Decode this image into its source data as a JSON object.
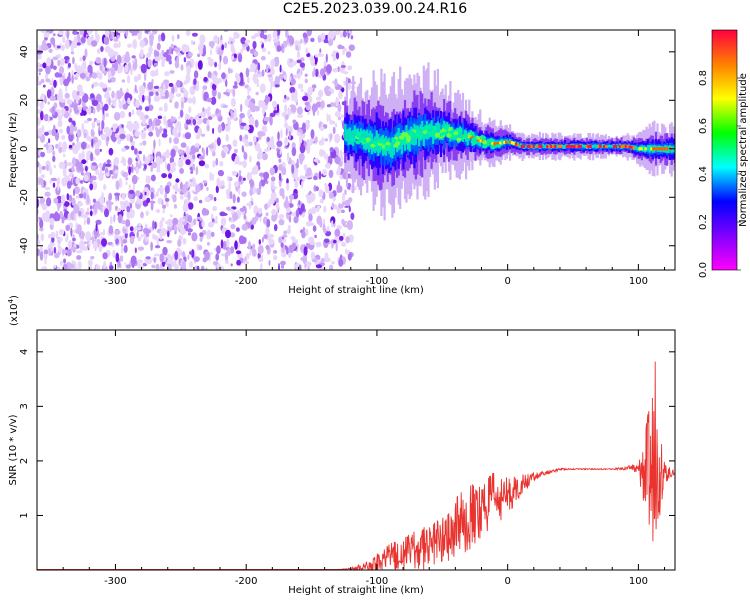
{
  "title": "C2E5.2023.039.00.24.R16",
  "colors": {
    "frame": "#000000",
    "snr_line": "#e8332f",
    "spectrum_noise": "#7a1fe8",
    "colorbar_stops": [
      "#ff00ff",
      "#8000ff",
      "#0000ff",
      "#00ffff",
      "#00ff00",
      "#ffff00",
      "#ff8000",
      "#ff0040"
    ]
  },
  "chart_data": [
    {
      "type": "heatmap",
      "xlabel": "Height of straight line (km)",
      "ylabel": "Frequency (Hz)",
      "xlim": [
        -360,
        128
      ],
      "ylim": [
        -50,
        49
      ],
      "xticks": [
        -300,
        -200,
        -100,
        0,
        100
      ],
      "yticks": [
        -40,
        -20,
        0,
        20,
        40
      ],
      "colorbar": {
        "label": "Normalized spectral amplitude",
        "range": [
          0.0,
          1.0
        ],
        "ticks": [
          "0.0",
          "0.2",
          "0.4",
          "0.6",
          "0.8"
        ]
      },
      "noise_region": {
        "x_range": [
          -360,
          -120
        ],
        "freq_range": [
          -50,
          49
        ]
      },
      "signal_track": [
        {
          "x": -125,
          "freq": 6,
          "spread": 6
        },
        {
          "x": -110,
          "freq": 4,
          "spread": 7
        },
        {
          "x": -100,
          "freq": 2,
          "spread": 8
        },
        {
          "x": -90,
          "freq": 1,
          "spread": 8
        },
        {
          "x": -80,
          "freq": 4,
          "spread": 8
        },
        {
          "x": -70,
          "freq": 6,
          "spread": 8
        },
        {
          "x": -60,
          "freq": 7,
          "spread": 7
        },
        {
          "x": -50,
          "freq": 7,
          "spread": 6
        },
        {
          "x": -40,
          "freq": 6,
          "spread": 5
        },
        {
          "x": -30,
          "freq": 5,
          "spread": 4
        },
        {
          "x": -20,
          "freq": 3,
          "spread": 3
        },
        {
          "x": -10,
          "freq": 2,
          "spread": 3
        },
        {
          "x": 0,
          "freq": 3,
          "spread": 2
        },
        {
          "x": 10,
          "freq": 1,
          "spread": 1.5
        },
        {
          "x": 30,
          "freq": 1,
          "spread": 1.5
        },
        {
          "x": 60,
          "freq": 1,
          "spread": 1.5
        },
        {
          "x": 90,
          "freq": 1,
          "spread": 1.5
        },
        {
          "x": 100,
          "freq": 0,
          "spread": 2
        },
        {
          "x": 110,
          "freq": 0,
          "spread": 3
        },
        {
          "x": 128,
          "freq": 0,
          "spread": 3
        }
      ]
    },
    {
      "type": "line",
      "xlabel": "Height of straight line (km)",
      "ylabel": "SNR (10 * v/v)",
      "y_multiplier": "(x10",
      "y_multiplier_exp": "4",
      "y_multiplier_close": ")",
      "xlim": [
        -360,
        128
      ],
      "ylim": [
        0,
        4.4
      ],
      "xticks": [
        -300,
        -200,
        -100,
        0,
        100
      ],
      "yticks": [
        1,
        2,
        3,
        4
      ],
      "series": [
        {
          "x": [
            -360,
            -200,
            -130,
            -120,
            -110,
            -100,
            -90,
            -80,
            -70,
            -60,
            -50,
            -40,
            -30,
            -20,
            -10,
            0,
            10,
            20,
            30,
            40,
            50,
            60,
            70,
            80,
            90,
            95,
            100,
            105,
            108,
            110,
            112,
            115,
            120,
            128
          ],
          "y": [
            0.01,
            0.01,
            0.01,
            0.02,
            0.05,
            0.12,
            0.25,
            0.3,
            0.35,
            0.45,
            0.6,
            0.8,
            0.95,
            1.1,
            1.3,
            1.35,
            1.55,
            1.7,
            1.78,
            1.85,
            1.85,
            1.85,
            1.85,
            1.85,
            1.86,
            1.88,
            1.82,
            1.85,
            1.8,
            1.7,
            2.5,
            1.75,
            1.78,
            1.78
          ],
          "noise_amplitude": [
            0,
            0,
            0,
            0.02,
            0.08,
            0.18,
            0.25,
            0.3,
            0.4,
            0.45,
            0.5,
            0.55,
            0.6,
            0.55,
            0.5,
            0.35,
            0.2,
            0.08,
            0.03,
            0.02,
            0.01,
            0.01,
            0.01,
            0.01,
            0.03,
            0.05,
            0.15,
            0.8,
            1.2,
            1.4,
            1.8,
            1.0,
            0.2,
            0.02
          ]
        }
      ]
    }
  ]
}
